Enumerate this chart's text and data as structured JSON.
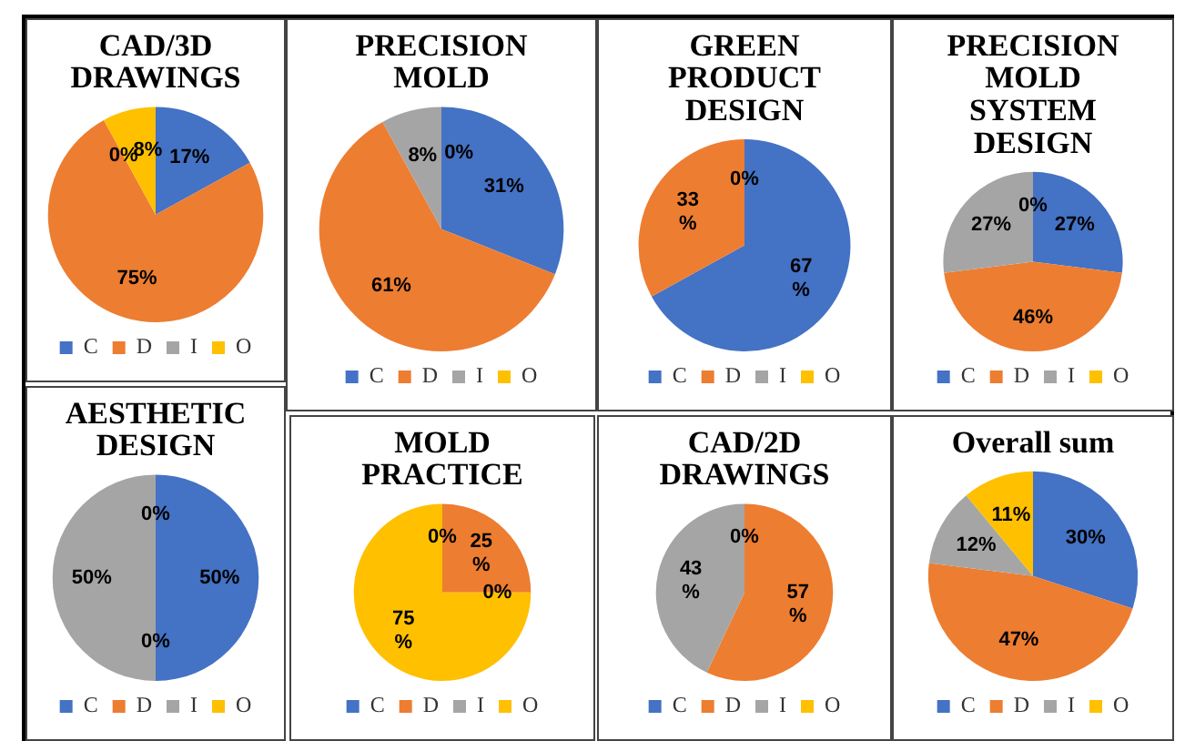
{
  "chart_data": [
    {
      "type": "pie",
      "title": "CAD/3D DRAWINGS",
      "categories": [
        "C",
        "D",
        "I",
        "O"
      ],
      "values": [
        17,
        75,
        0,
        8
      ],
      "colors": [
        "#4472c4",
        "#ed7d31",
        "#a5a5a5",
        "#ffc000"
      ],
      "legend": "bottom",
      "value_labels": [
        "17%",
        "75%",
        "0%",
        "8%"
      ]
    },
    {
      "type": "pie",
      "title": "PRECISION MOLD",
      "categories": [
        "C",
        "D",
        "I",
        "O"
      ],
      "values": [
        31,
        61,
        8,
        0
      ],
      "colors": [
        "#4472c4",
        "#ed7d31",
        "#a5a5a5",
        "#ffc000"
      ],
      "legend": "bottom",
      "value_labels": [
        "31%",
        "61%",
        "8%",
        "0%"
      ]
    },
    {
      "type": "pie",
      "title": "GREEN PRODUCT DESIGN",
      "categories": [
        "C",
        "D",
        "I",
        "O"
      ],
      "values": [
        67,
        33,
        0,
        0
      ],
      "colors": [
        "#4472c4",
        "#ed7d31",
        "#a5a5a5",
        "#ffc000"
      ],
      "legend": "bottom",
      "value_labels": [
        "67 %",
        "33 %",
        "0%",
        null
      ]
    },
    {
      "type": "pie",
      "title": "PRECISION MOLD SYSTEM DESIGN",
      "categories": [
        "C",
        "D",
        "I",
        "O"
      ],
      "values": [
        27,
        46,
        27,
        0
      ],
      "colors": [
        "#4472c4",
        "#ed7d31",
        "#a5a5a5",
        "#ffc000"
      ],
      "legend": "bottom",
      "value_labels": [
        "27%",
        "46%",
        "27%",
        "0%"
      ]
    },
    {
      "type": "pie",
      "title": "AESTHETIC DESIGN",
      "categories": [
        "C",
        "D",
        "I",
        "O"
      ],
      "values": [
        50,
        0,
        50,
        0
      ],
      "colors": [
        "#4472c4",
        "#ed7d31",
        "#a5a5a5",
        "#ffc000"
      ],
      "legend": "bottom",
      "value_labels": [
        "50%",
        "0%",
        "50%",
        "0%"
      ]
    },
    {
      "type": "pie",
      "title": "MOLD PRACTICE",
      "categories": [
        "C",
        "D",
        "I",
        "O"
      ],
      "values": [
        0,
        25,
        0,
        75
      ],
      "colors": [
        "#4472c4",
        "#ed7d31",
        "#a5a5a5",
        "#ffc000"
      ],
      "legend": "bottom",
      "value_labels": [
        "0%",
        "25 %",
        "0%",
        "75 %"
      ]
    },
    {
      "type": "pie",
      "title": "CAD/2D DRAWINGS",
      "categories": [
        "C",
        "D",
        "I",
        "O"
      ],
      "values": [
        0,
        57,
        43,
        0
      ],
      "colors": [
        "#4472c4",
        "#ed7d31",
        "#a5a5a5",
        "#ffc000"
      ],
      "legend": "bottom",
      "value_labels": [
        "0%",
        "57 %",
        "43 %",
        null
      ]
    },
    {
      "type": "pie",
      "title": "Overall sum",
      "categories": [
        "C",
        "D",
        "I",
        "O"
      ],
      "values": [
        30,
        47,
        12,
        11
      ],
      "colors": [
        "#4472c4",
        "#ed7d31",
        "#a5a5a5",
        "#ffc000"
      ],
      "legend": "bottom",
      "value_labels": [
        "30%",
        "47%",
        "12%",
        "11%"
      ]
    }
  ]
}
